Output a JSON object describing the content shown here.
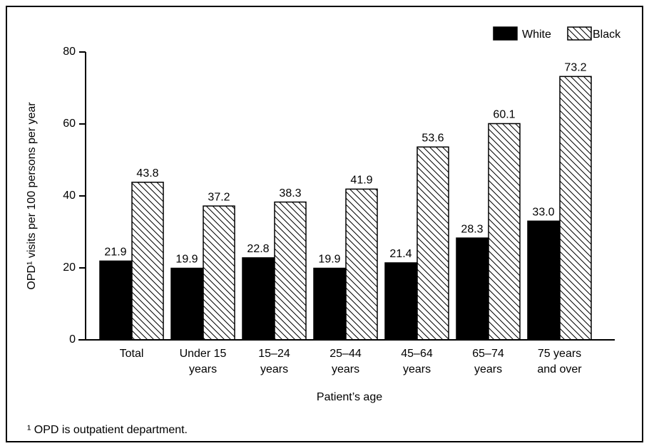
{
  "chart_data": {
    "type": "bar",
    "categories": [
      [
        "Total"
      ],
      [
        "Under 15",
        "years"
      ],
      [
        "15–24",
        "years"
      ],
      [
        "25–44",
        "years"
      ],
      [
        "45–64",
        "years"
      ],
      [
        "65–74",
        "years"
      ],
      [
        "75 years",
        "and over"
      ]
    ],
    "series": [
      {
        "name": "White",
        "color": "#000000",
        "values": [
          21.9,
          19.9,
          22.8,
          19.9,
          21.4,
          28.3,
          33.0
        ],
        "value_labels": [
          "21.9",
          "19.9",
          "22.8",
          "19.9",
          "21.4",
          "28.3",
          "33.0"
        ]
      },
      {
        "name": "Black",
        "color": "#000000",
        "hatch": true,
        "values": [
          43.8,
          37.2,
          38.3,
          41.9,
          53.6,
          60.1,
          73.2
        ],
        "value_labels": [
          "43.8",
          "37.2",
          "38.3",
          "41.9",
          "53.6",
          "60.1",
          "73.2"
        ]
      }
    ],
    "x_label": "Patient’s age",
    "y_label": "OPD¹ visits per 100 persons per year",
    "footnote": "¹ OPD is outpatient department.",
    "ylim": [
      0,
      80
    ],
    "yticks": [
      0,
      20,
      40,
      60,
      80
    ],
    "legend": "top-right"
  }
}
